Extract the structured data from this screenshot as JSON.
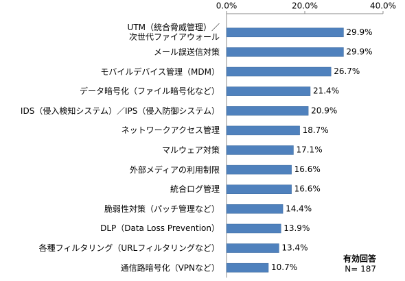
{
  "chart_data": {
    "type": "barh",
    "categories": [
      "UTM（統合脅威管理）／\n次世代ファイアウォール",
      "メール誤送信対策",
      "モバイルデバイス管理（MDM）",
      "データ暗号化（ファイル暗号化など）",
      "IDS（侵入検知システム）／IPS（侵入防御システム）",
      "ネットワークアクセス管理",
      "マルウェア対策",
      "外部メディアの利用制限",
      "統合ログ管理",
      "脆弱性対策（パッチ管理など）",
      "DLP（Data Loss Prevention）",
      "各種フィルタリング（URLフィルタリングなど）",
      "通信路暗号化（VPNなど）"
    ],
    "values": [
      29.9,
      29.9,
      26.7,
      21.4,
      20.9,
      18.7,
      17.1,
      16.6,
      16.6,
      14.4,
      13.9,
      13.4,
      10.7
    ],
    "value_labels": [
      "29.9%",
      "29.9%",
      "26.7%",
      "21.4%",
      "20.9%",
      "18.7%",
      "17.1%",
      "16.6%",
      "16.6%",
      "14.4%",
      "13.9%",
      "13.4%",
      "10.7%"
    ],
    "color": "#4f81bd",
    "xlim": [
      0,
      40
    ],
    "xticks": [
      {
        "value": 0,
        "label": "0.0%"
      },
      {
        "value": 20,
        "label": "20.0%"
      },
      {
        "value": 40,
        "label": "40.0%"
      }
    ],
    "annotation": [
      "有効回答",
      "N= 187"
    ]
  }
}
